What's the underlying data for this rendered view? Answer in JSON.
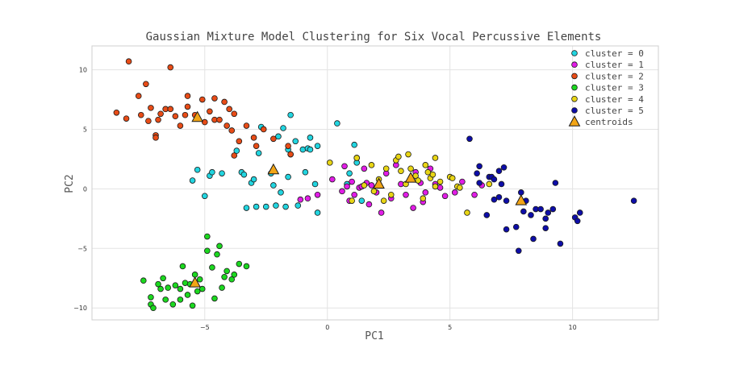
{
  "chart_data": {
    "type": "scatter",
    "title": "Gaussian Mixture Model Clustering for Six Vocal Percussive Elements",
    "xlabel": "PC1",
    "ylabel": "PC2",
    "xlim": [
      -9.6,
      13.5
    ],
    "ylim": [
      -11.0,
      12.0
    ],
    "xticks": [
      -5,
      0,
      5,
      10
    ],
    "yticks": [
      -10,
      -5,
      0,
      5,
      10
    ],
    "xtick_labels": [
      "−5",
      "0",
      "5",
      "10"
    ],
    "ytick_labels": [
      "−10",
      "−5",
      "0",
      "5",
      "10"
    ],
    "grid": true,
    "legend_position": "top-right",
    "series": [
      {
        "name": "cluster = 0",
        "color": "#22d5e0",
        "points": [
          [
            -5.5,
            0.7
          ],
          [
            -5.3,
            1.6
          ],
          [
            -5.0,
            -0.6
          ],
          [
            -4.8,
            1.1
          ],
          [
            -4.7,
            1.4
          ],
          [
            -4.3,
            1.3
          ],
          [
            -3.7,
            3.2
          ],
          [
            -3.5,
            1.4
          ],
          [
            -3.4,
            1.2
          ],
          [
            -3.3,
            -1.6
          ],
          [
            -3.1,
            0.5
          ],
          [
            -3.0,
            0.8
          ],
          [
            -2.8,
            3.0
          ],
          [
            -2.9,
            -1.5
          ],
          [
            -2.7,
            5.2
          ],
          [
            -2.5,
            -1.5
          ],
          [
            -2.3,
            1.3
          ],
          [
            -2.2,
            0.3
          ],
          [
            -2.1,
            -1.4
          ],
          [
            -2.0,
            4.4
          ],
          [
            -1.9,
            -0.3
          ],
          [
            -1.8,
            5.1
          ],
          [
            -1.7,
            -1.5
          ],
          [
            -1.6,
            3.3
          ],
          [
            -1.5,
            6.2
          ],
          [
            -1.6,
            1.0
          ],
          [
            -1.5,
            2.9
          ],
          [
            -1.3,
            4.0
          ],
          [
            -1.2,
            -1.4
          ],
          [
            -1.0,
            3.3
          ],
          [
            -0.9,
            1.4
          ],
          [
            -0.8,
            3.4
          ],
          [
            -0.7,
            4.3
          ],
          [
            -0.7,
            3.3
          ],
          [
            -0.5,
            0.4
          ],
          [
            -0.4,
            -2.0
          ],
          [
            -0.4,
            3.6
          ],
          [
            0.4,
            5.5
          ],
          [
            0.8,
            0.4
          ],
          [
            0.9,
            1.3
          ],
          [
            1.1,
            3.7
          ],
          [
            1.2,
            2.2
          ],
          [
            1.4,
            -1.0
          ]
        ]
      },
      {
        "name": "cluster = 1",
        "color": "#e11de6",
        "points": [
          [
            -1.1,
            -0.9
          ],
          [
            -0.8,
            -0.8
          ],
          [
            -0.4,
            -0.5
          ],
          [
            0.2,
            0.8
          ],
          [
            0.6,
            -0.2
          ],
          [
            0.7,
            1.9
          ],
          [
            0.8,
            0.2
          ],
          [
            0.9,
            -1.0
          ],
          [
            1.0,
            0.6
          ],
          [
            1.1,
            -0.5
          ],
          [
            1.2,
            2.6
          ],
          [
            1.3,
            0.1
          ],
          [
            1.4,
            0.2
          ],
          [
            1.5,
            1.7
          ],
          [
            1.6,
            0.5
          ],
          [
            1.7,
            -1.3
          ],
          [
            1.8,
            0.3
          ],
          [
            2.0,
            -0.3
          ],
          [
            2.2,
            -2.0
          ],
          [
            2.4,
            1.3
          ],
          [
            2.6,
            -0.8
          ],
          [
            2.8,
            2.0
          ],
          [
            3.0,
            0.4
          ],
          [
            3.2,
            -0.5
          ],
          [
            3.5,
            -1.6
          ],
          [
            3.6,
            1.4
          ],
          [
            3.8,
            0.5
          ],
          [
            3.9,
            -1.1
          ],
          [
            4.0,
            -0.3
          ],
          [
            4.2,
            1.7
          ],
          [
            4.4,
            0.4
          ],
          [
            4.6,
            0.1
          ],
          [
            4.8,
            -0.6
          ],
          [
            5.2,
            -0.3
          ],
          [
            5.5,
            0.6
          ],
          [
            6.0,
            -0.5
          ],
          [
            6.3,
            0.3
          ]
        ]
      },
      {
        "name": "cluster = 2",
        "color": "#e84c17",
        "points": [
          [
            -8.6,
            6.4
          ],
          [
            -8.2,
            5.9
          ],
          [
            -8.1,
            10.7
          ],
          [
            -7.7,
            7.8
          ],
          [
            -7.6,
            6.2
          ],
          [
            -7.4,
            8.8
          ],
          [
            -7.3,
            5.7
          ],
          [
            -7.2,
            6.8
          ],
          [
            -7.0,
            4.5
          ],
          [
            -7.0,
            4.3
          ],
          [
            -6.9,
            5.8
          ],
          [
            -6.8,
            6.3
          ],
          [
            -6.6,
            6.7
          ],
          [
            -6.4,
            10.2
          ],
          [
            -6.4,
            6.7
          ],
          [
            -6.2,
            6.1
          ],
          [
            -6.0,
            5.3
          ],
          [
            -5.8,
            6.2
          ],
          [
            -5.7,
            7.8
          ],
          [
            -5.7,
            6.9
          ],
          [
            -5.4,
            6.2
          ],
          [
            -5.1,
            7.5
          ],
          [
            -5.0,
            5.6
          ],
          [
            -4.8,
            6.5
          ],
          [
            -4.6,
            7.6
          ],
          [
            -4.6,
            5.8
          ],
          [
            -4.4,
            5.8
          ],
          [
            -4.2,
            7.3
          ],
          [
            -4.1,
            5.3
          ],
          [
            -4.0,
            6.7
          ],
          [
            -3.9,
            4.9
          ],
          [
            -3.8,
            2.8
          ],
          [
            -3.8,
            6.3
          ],
          [
            -3.6,
            4.0
          ],
          [
            -3.3,
            5.3
          ],
          [
            -3.0,
            4.3
          ],
          [
            -2.9,
            3.6
          ],
          [
            -2.6,
            5.0
          ],
          [
            -2.2,
            4.2
          ],
          [
            -1.6,
            3.6
          ],
          [
            -1.5,
            2.9
          ]
        ]
      },
      {
        "name": "cluster = 3",
        "color": "#1bd81f",
        "points": [
          [
            -7.5,
            -7.7
          ],
          [
            -7.2,
            -9.1
          ],
          [
            -7.2,
            -9.7
          ],
          [
            -7.1,
            -10.0
          ],
          [
            -6.9,
            -8.0
          ],
          [
            -6.8,
            -8.4
          ],
          [
            -6.7,
            -7.5
          ],
          [
            -6.6,
            -9.3
          ],
          [
            -6.5,
            -8.3
          ],
          [
            -6.3,
            -9.7
          ],
          [
            -6.2,
            -8.1
          ],
          [
            -6.0,
            -8.4
          ],
          [
            -6.0,
            -9.3
          ],
          [
            -5.9,
            -6.5
          ],
          [
            -5.8,
            -7.9
          ],
          [
            -5.7,
            -8.9
          ],
          [
            -5.6,
            -8.0
          ],
          [
            -5.5,
            -9.8
          ],
          [
            -5.4,
            -7.2
          ],
          [
            -5.3,
            -8.6
          ],
          [
            -5.2,
            -7.6
          ],
          [
            -5.1,
            -8.4
          ],
          [
            -4.9,
            -5.2
          ],
          [
            -4.9,
            -4.0
          ],
          [
            -4.7,
            -6.6
          ],
          [
            -4.6,
            -9.2
          ],
          [
            -4.5,
            -5.5
          ],
          [
            -4.4,
            -4.8
          ],
          [
            -4.3,
            -8.3
          ],
          [
            -4.2,
            -7.4
          ],
          [
            -4.1,
            -6.9
          ],
          [
            -3.9,
            -7.6
          ],
          [
            -3.8,
            -7.2
          ],
          [
            -3.6,
            -6.3
          ],
          [
            -3.3,
            -6.5
          ]
        ]
      },
      {
        "name": "cluster = 4",
        "color": "#e8d514",
        "points": [
          [
            0.1,
            2.2
          ],
          [
            1.0,
            -1.0
          ],
          [
            1.2,
            2.6
          ],
          [
            1.5,
            0.3
          ],
          [
            1.8,
            2.0
          ],
          [
            1.9,
            -0.2
          ],
          [
            2.1,
            0.8
          ],
          [
            2.3,
            -1.0
          ],
          [
            2.4,
            1.7
          ],
          [
            2.6,
            -0.5
          ],
          [
            2.8,
            2.4
          ],
          [
            2.9,
            2.7
          ],
          [
            3.0,
            1.5
          ],
          [
            3.2,
            0.4
          ],
          [
            3.3,
            2.9
          ],
          [
            3.4,
            1.7
          ],
          [
            3.6,
            1.1
          ],
          [
            3.7,
            0.7
          ],
          [
            3.9,
            -0.8
          ],
          [
            4.0,
            2.0
          ],
          [
            4.1,
            1.4
          ],
          [
            4.2,
            0.9
          ],
          [
            4.3,
            1.2
          ],
          [
            4.4,
            0.2
          ],
          [
            4.4,
            2.6
          ],
          [
            4.6,
            0.6
          ],
          [
            5.0,
            1.0
          ],
          [
            5.1,
            0.9
          ],
          [
            5.3,
            0.2
          ],
          [
            5.4,
            0.1
          ],
          [
            5.7,
            -2.0
          ],
          [
            6.6,
            0.4
          ]
        ]
      },
      {
        "name": "cluster = 5",
        "color": "#0d0da8",
        "points": [
          [
            5.8,
            4.2
          ],
          [
            6.1,
            1.3
          ],
          [
            6.2,
            1.9
          ],
          [
            6.2,
            0.5
          ],
          [
            6.5,
            -2.2
          ],
          [
            6.6,
            1.0
          ],
          [
            6.7,
            1.0
          ],
          [
            6.8,
            0.8
          ],
          [
            6.8,
            -0.9
          ],
          [
            7.0,
            -0.7
          ],
          [
            7.0,
            1.5
          ],
          [
            7.1,
            0.4
          ],
          [
            7.2,
            1.8
          ],
          [
            7.3,
            -1.0
          ],
          [
            7.3,
            -3.4
          ],
          [
            7.7,
            -3.2
          ],
          [
            7.8,
            -5.2
          ],
          [
            7.9,
            -0.3
          ],
          [
            8.0,
            -1.9
          ],
          [
            8.1,
            -1.0
          ],
          [
            8.3,
            -2.2
          ],
          [
            8.4,
            -4.2
          ],
          [
            8.5,
            -1.7
          ],
          [
            8.7,
            -1.7
          ],
          [
            8.9,
            -3.3
          ],
          [
            8.9,
            -2.5
          ],
          [
            9.0,
            -2.0
          ],
          [
            9.2,
            -1.7
          ],
          [
            9.3,
            0.5
          ],
          [
            9.5,
            -4.6
          ],
          [
            10.1,
            -2.4
          ],
          [
            10.2,
            -2.7
          ],
          [
            10.3,
            -2.0
          ],
          [
            12.5,
            -1.0
          ]
        ]
      }
    ],
    "centroids": {
      "name": "centroids",
      "color": "#f2a516",
      "points": [
        [
          -5.3,
          6.0
        ],
        [
          -2.2,
          1.6
        ],
        [
          -5.4,
          -7.9
        ],
        [
          2.1,
          0.4
        ],
        [
          3.4,
          0.9
        ],
        [
          7.9,
          -1.0
        ]
      ]
    }
  }
}
